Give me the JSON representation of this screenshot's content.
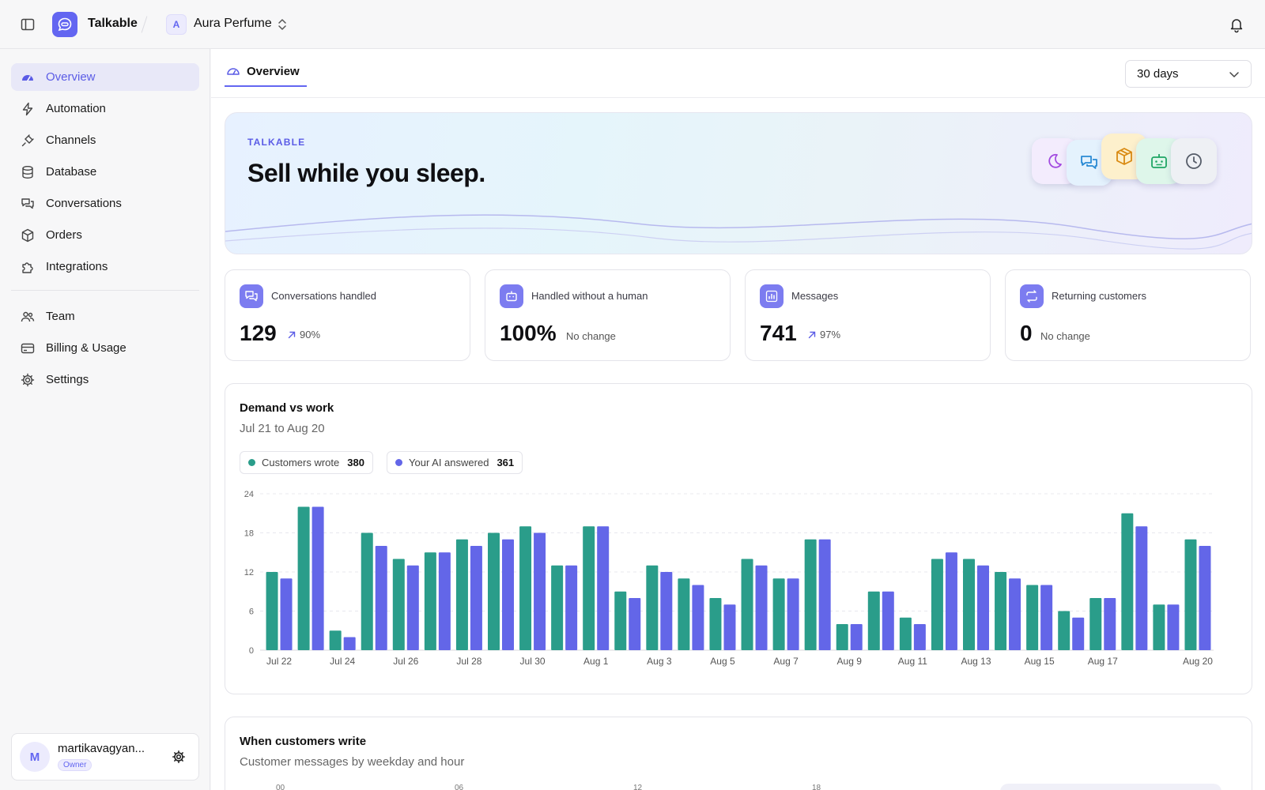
{
  "topbar": {
    "app_name": "Talkable",
    "workspace_initial": "A",
    "workspace_name": "Aura Perfume"
  },
  "sidebar": {
    "items": [
      {
        "label": "Overview",
        "icon": "gauge-icon"
      },
      {
        "label": "Automation",
        "icon": "bolt-icon"
      },
      {
        "label": "Channels",
        "icon": "plug-icon"
      },
      {
        "label": "Database",
        "icon": "database-icon"
      },
      {
        "label": "Conversations",
        "icon": "chat-icon"
      },
      {
        "label": "Orders",
        "icon": "box-icon"
      },
      {
        "label": "Integrations",
        "icon": "puzzle-icon"
      }
    ],
    "secondary_items": [
      {
        "label": "Team",
        "icon": "team-icon"
      },
      {
        "label": "Billing & Usage",
        "icon": "card-icon"
      },
      {
        "label": "Settings",
        "icon": "gear-icon"
      }
    ],
    "user": {
      "initial": "M",
      "name": "martikavagyan...",
      "role": "Owner"
    }
  },
  "main": {
    "tab": {
      "label": "Overview"
    },
    "range": {
      "selected": "30 days"
    },
    "hero": {
      "kicker": "TALKABLE",
      "title": "Sell while you sleep."
    },
    "stats": [
      {
        "label": "Conversations handled",
        "value": "129",
        "delta": "90%",
        "trend": "up"
      },
      {
        "label": "Handled without a human",
        "value": "100%",
        "delta": "No change",
        "trend": "none"
      },
      {
        "label": "Messages",
        "value": "741",
        "delta": "97%",
        "trend": "up"
      },
      {
        "label": "Returning customers",
        "value": "0",
        "delta": "No change",
        "trend": "none"
      }
    ],
    "demand_chart": {
      "title": "Demand vs work",
      "subtitle": "Jul 21 to Aug 20",
      "legend": [
        {
          "label": "Customers wrote",
          "total": "380"
        },
        {
          "label": "Your AI answered",
          "total": "361"
        }
      ]
    },
    "heatmap": {
      "title": "When customers write",
      "subtitle": "Customer messages by weekday and hour",
      "hour_labels": [
        "00",
        "06",
        "12",
        "18"
      ]
    }
  },
  "colors": {
    "accent": "#6366f1",
    "customers": "#2a9d8a",
    "ai": "#6366e8"
  },
  "chart_data": {
    "type": "bar",
    "categories": [
      "Jul 22",
      "Jul 23",
      "Jul 24",
      "Jul 25",
      "Jul 26",
      "Jul 27",
      "Jul 28",
      "Jul 29",
      "Jul 30",
      "Jul 31",
      "Aug 1",
      "Aug 2",
      "Aug 3",
      "Aug 4",
      "Aug 5",
      "Aug 6",
      "Aug 7",
      "Aug 8",
      "Aug 9",
      "Aug 10",
      "Aug 11",
      "Aug 12",
      "Aug 13",
      "Aug 14",
      "Aug 15",
      "Aug 16",
      "Aug 17",
      "Aug 18",
      "Aug 19",
      "Aug 20"
    ],
    "tick_labels": [
      "Jul 22",
      "Jul 24",
      "Jul 26",
      "Jul 28",
      "Jul 30",
      "Aug 1",
      "Aug 3",
      "Aug 5",
      "Aug 7",
      "Aug 9",
      "Aug 11",
      "Aug 13",
      "Aug 15",
      "Aug 17",
      "Aug 20"
    ],
    "series": [
      {
        "name": "Customers wrote",
        "values": [
          12,
          22,
          3,
          18,
          14,
          15,
          17,
          18,
          19,
          13,
          19,
          9,
          13,
          11,
          8,
          14,
          11,
          17,
          4,
          9,
          5,
          14,
          14,
          12,
          10,
          6,
          8,
          21,
          7,
          17
        ]
      },
      {
        "name": "Your AI answered",
        "values": [
          11,
          22,
          2,
          16,
          13,
          15,
          16,
          17,
          18,
          13,
          19,
          8,
          12,
          10,
          7,
          13,
          11,
          17,
          4,
          9,
          4,
          15,
          13,
          11,
          10,
          5,
          8,
          19,
          7,
          16
        ]
      }
    ],
    "ylim": [
      0,
      24
    ],
    "yticks": [
      0,
      6,
      12,
      18,
      24
    ],
    "grid": true,
    "legend": "top-left"
  }
}
